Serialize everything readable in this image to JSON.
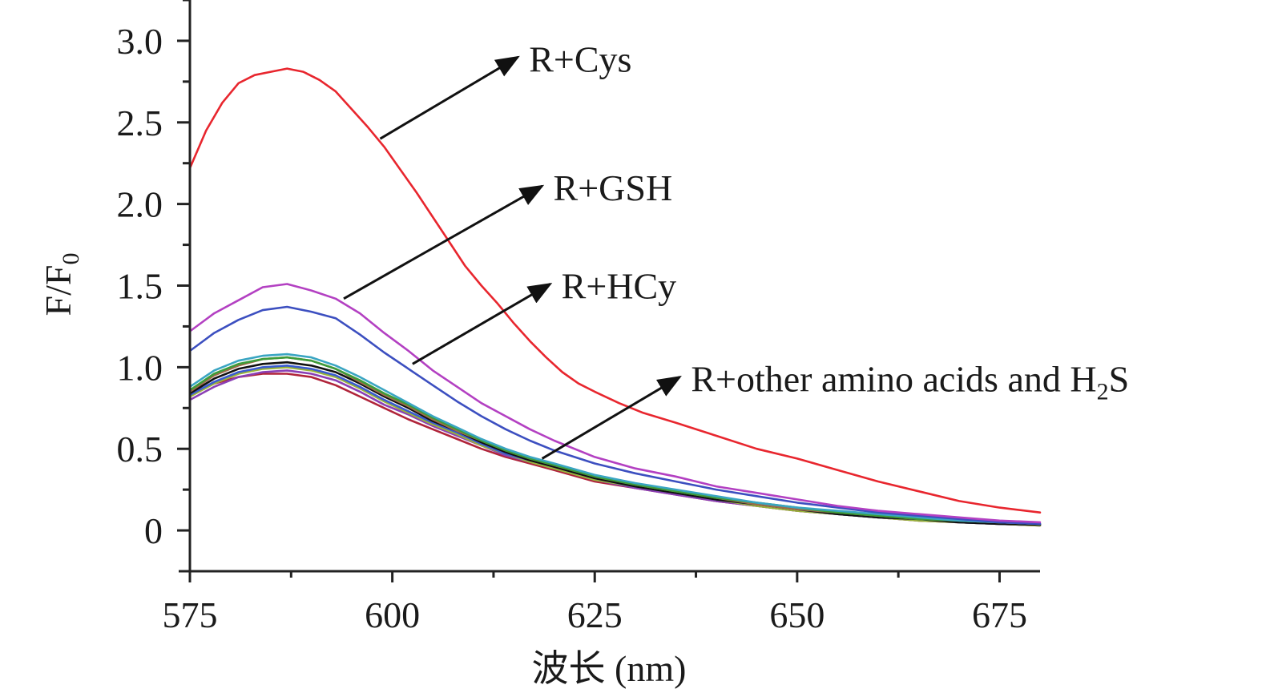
{
  "chart_data": {
    "type": "line",
    "title": "",
    "xlabel": "波长 (nm)",
    "ylabel": "F/F",
    "ylabel_subscript": "0",
    "xlim": [
      575,
      680
    ],
    "ylim": [
      -0.25,
      3.25
    ],
    "x_ticks": [
      575,
      600,
      625,
      650,
      675
    ],
    "x_tick_labels": [
      "575",
      "600",
      "625",
      "650",
      "675"
    ],
    "x_minor_ticks": [
      587.5,
      612.5,
      637.5,
      662.5
    ],
    "y_ticks": [
      0,
      0.5,
      1.0,
      1.5,
      2.0,
      2.5,
      3.0
    ],
    "y_tick_labels": [
      "0",
      "0.5",
      "1.0",
      "1.5",
      "2.0",
      "2.5",
      "3.0"
    ],
    "y_minor_ticks": [
      -0.25,
      0.25,
      0.75,
      1.25,
      1.75,
      2.25,
      2.75,
      3.25
    ],
    "grid": false,
    "legend": "none (inline arrow annotations)",
    "series": [
      {
        "name": "R+Cys",
        "color": "#e8262e",
        "x": [
          575,
          577,
          579,
          581,
          583,
          585,
          587,
          589,
          591,
          593,
          595,
          597,
          599,
          601,
          603,
          605,
          607,
          609,
          611,
          613,
          615,
          617,
          619,
          621,
          623,
          625,
          628,
          631,
          635,
          640,
          645,
          650,
          655,
          660,
          665,
          670,
          675,
          680
        ],
        "y": [
          2.22,
          2.45,
          2.62,
          2.74,
          2.79,
          2.81,
          2.83,
          2.81,
          2.76,
          2.69,
          2.58,
          2.47,
          2.35,
          2.21,
          2.07,
          1.92,
          1.77,
          1.62,
          1.5,
          1.39,
          1.27,
          1.16,
          1.06,
          0.97,
          0.9,
          0.85,
          0.78,
          0.72,
          0.66,
          0.58,
          0.5,
          0.44,
          0.37,
          0.3,
          0.24,
          0.18,
          0.14,
          0.11
        ]
      },
      {
        "name": "R+GSH",
        "color": "#b340c2",
        "x": [
          575,
          578,
          581,
          584,
          587,
          590,
          593,
          596,
          599,
          602,
          605,
          608,
          611,
          614,
          617,
          620,
          625,
          630,
          635,
          640,
          645,
          650,
          655,
          660,
          665,
          670,
          675,
          680
        ],
        "y": [
          1.22,
          1.33,
          1.41,
          1.49,
          1.51,
          1.47,
          1.42,
          1.33,
          1.21,
          1.1,
          0.98,
          0.88,
          0.78,
          0.7,
          0.62,
          0.55,
          0.45,
          0.38,
          0.33,
          0.27,
          0.23,
          0.19,
          0.15,
          0.12,
          0.1,
          0.08,
          0.06,
          0.05
        ]
      },
      {
        "name": "R+HCy",
        "color": "#3c4fc0",
        "x": [
          575,
          578,
          581,
          584,
          587,
          590,
          593,
          596,
          599,
          602,
          605,
          608,
          611,
          614,
          617,
          620,
          625,
          630,
          635,
          640,
          645,
          650,
          655,
          660,
          665,
          670,
          675,
          680
        ],
        "y": [
          1.1,
          1.21,
          1.29,
          1.35,
          1.37,
          1.34,
          1.3,
          1.2,
          1.09,
          0.99,
          0.89,
          0.79,
          0.7,
          0.62,
          0.55,
          0.49,
          0.41,
          0.35,
          0.3,
          0.25,
          0.21,
          0.17,
          0.14,
          0.11,
          0.09,
          0.07,
          0.05,
          0.04
        ]
      },
      {
        "name": "R+other amino acids and H2S (teal)",
        "color": "#3aa5c2",
        "x": [
          575,
          578,
          581,
          584,
          587,
          590,
          593,
          596,
          599,
          602,
          605,
          608,
          611,
          614,
          617,
          620,
          625,
          630,
          635,
          640,
          645,
          650,
          655,
          660,
          665,
          670,
          675,
          680
        ],
        "y": [
          0.88,
          0.98,
          1.04,
          1.07,
          1.08,
          1.06,
          1.01,
          0.94,
          0.86,
          0.78,
          0.7,
          0.63,
          0.56,
          0.5,
          0.45,
          0.41,
          0.34,
          0.29,
          0.25,
          0.21,
          0.17,
          0.14,
          0.12,
          0.1,
          0.08,
          0.06,
          0.05,
          0.04
        ]
      },
      {
        "name": "R+other amino acids and H2S (green)",
        "color": "#3d9c3a",
        "x": [
          575,
          578,
          581,
          584,
          587,
          590,
          593,
          596,
          599,
          602,
          605,
          608,
          611,
          614,
          617,
          620,
          625,
          630,
          635,
          640,
          645,
          650,
          655,
          660,
          665,
          670,
          675,
          680
        ],
        "y": [
          0.86,
          0.96,
          1.02,
          1.05,
          1.06,
          1.04,
          0.99,
          0.92,
          0.84,
          0.77,
          0.69,
          0.62,
          0.55,
          0.49,
          0.44,
          0.4,
          0.33,
          0.28,
          0.24,
          0.2,
          0.17,
          0.14,
          0.11,
          0.09,
          0.07,
          0.06,
          0.05,
          0.04
        ]
      },
      {
        "name": "R+other amino acids and H2S (brown)",
        "color": "#a06a4a",
        "x": [
          575,
          578,
          581,
          584,
          587,
          590,
          593,
          596,
          599,
          602,
          605,
          608,
          611,
          614,
          617,
          620,
          625,
          630,
          635,
          640,
          645,
          650,
          655,
          660,
          665,
          670,
          675,
          680
        ],
        "y": [
          0.85,
          0.95,
          1.01,
          1.05,
          1.06,
          1.04,
          0.99,
          0.91,
          0.83,
          0.76,
          0.68,
          0.61,
          0.55,
          0.49,
          0.44,
          0.4,
          0.33,
          0.28,
          0.24,
          0.2,
          0.16,
          0.13,
          0.11,
          0.09,
          0.07,
          0.06,
          0.05,
          0.04
        ]
      },
      {
        "name": "R+other amino acids and H2S (black)",
        "color": "#111111",
        "x": [
          575,
          578,
          581,
          584,
          587,
          590,
          593,
          596,
          599,
          602,
          605,
          608,
          611,
          614,
          617,
          620,
          625,
          630,
          635,
          640,
          645,
          650,
          655,
          660,
          665,
          670,
          675,
          680
        ],
        "y": [
          0.84,
          0.93,
          0.99,
          1.02,
          1.03,
          1.01,
          0.97,
          0.9,
          0.82,
          0.75,
          0.67,
          0.61,
          0.54,
          0.48,
          0.43,
          0.39,
          0.32,
          0.27,
          0.23,
          0.19,
          0.16,
          0.13,
          0.1,
          0.08,
          0.07,
          0.05,
          0.04,
          0.035
        ]
      },
      {
        "name": "R+other amino acids and H2S (blue)",
        "color": "#3a5bd0",
        "x": [
          575,
          578,
          581,
          584,
          587,
          590,
          593,
          596,
          599,
          602,
          605,
          608,
          611,
          614,
          617,
          620,
          625,
          630,
          635,
          640,
          645,
          650,
          655,
          660,
          665,
          670,
          675,
          680
        ],
        "y": [
          0.83,
          0.91,
          0.97,
          1.0,
          1.01,
          0.99,
          0.95,
          0.88,
          0.8,
          0.73,
          0.66,
          0.6,
          0.53,
          0.47,
          0.43,
          0.39,
          0.32,
          0.27,
          0.23,
          0.19,
          0.16,
          0.13,
          0.1,
          0.08,
          0.07,
          0.05,
          0.04,
          0.035
        ]
      },
      {
        "name": "R+other amino acids and H2S (olive)",
        "color": "#9ab43a",
        "x": [
          575,
          578,
          581,
          584,
          587,
          590,
          593,
          596,
          599,
          602,
          605,
          608,
          611,
          614,
          617,
          620,
          625,
          630,
          635,
          640,
          645,
          650,
          655,
          660,
          665,
          670,
          675,
          680
        ],
        "y": [
          0.82,
          0.9,
          0.96,
          0.99,
          1.0,
          0.98,
          0.94,
          0.87,
          0.79,
          0.72,
          0.65,
          0.59,
          0.52,
          0.47,
          0.42,
          0.38,
          0.31,
          0.27,
          0.23,
          0.19,
          0.15,
          0.12,
          0.1,
          0.08,
          0.06,
          0.05,
          0.04,
          0.03
        ]
      },
      {
        "name": "R+other amino acids and H2S (purple)",
        "color": "#8a3fb5",
        "x": [
          575,
          578,
          581,
          584,
          587,
          590,
          593,
          596,
          599,
          602,
          605,
          608,
          611,
          614,
          617,
          620,
          625,
          630,
          635,
          640,
          645,
          650,
          655,
          660,
          665,
          670,
          675,
          680
        ],
        "y": [
          0.8,
          0.88,
          0.94,
          0.97,
          0.98,
          0.96,
          0.92,
          0.85,
          0.77,
          0.71,
          0.64,
          0.58,
          0.52,
          0.46,
          0.42,
          0.38,
          0.31,
          0.26,
          0.22,
          0.18,
          0.15,
          0.12,
          0.1,
          0.08,
          0.06,
          0.05,
          0.04,
          0.03
        ]
      },
      {
        "name": "R+other amino acids and H2S (dark red)",
        "color": "#b0243a",
        "x": [
          575,
          578,
          581,
          584,
          587,
          590,
          593,
          596,
          599,
          602,
          605,
          608,
          611,
          614,
          617,
          620,
          625,
          630,
          635,
          640,
          645,
          650,
          655,
          660,
          665,
          670,
          675,
          680
        ],
        "y": [
          0.84,
          0.9,
          0.94,
          0.96,
          0.96,
          0.94,
          0.89,
          0.82,
          0.75,
          0.68,
          0.62,
          0.56,
          0.5,
          0.45,
          0.41,
          0.37,
          0.3,
          0.26,
          0.22,
          0.18,
          0.15,
          0.12,
          0.1,
          0.08,
          0.06,
          0.05,
          0.04,
          0.03
        ]
      }
    ],
    "annotations": [
      {
        "text": "R+Cys",
        "arrow_from": [
          598.5,
          2.4
        ],
        "arrow_to": [
          615.5,
          2.9
        ]
      },
      {
        "text": "R+GSH",
        "arrow_from": [
          594.0,
          1.42
        ],
        "arrow_to": [
          618.5,
          2.11
        ]
      },
      {
        "text": "R+HCy",
        "arrow_from": [
          602.5,
          1.02
        ],
        "arrow_to": [
          619.5,
          1.51
        ]
      },
      {
        "text": "R+other amino acids and H",
        "text_subscript": "2",
        "text_suffix": "S",
        "arrow_from": [
          618.5,
          0.44
        ],
        "arrow_to": [
          635.5,
          0.94
        ]
      }
    ]
  }
}
